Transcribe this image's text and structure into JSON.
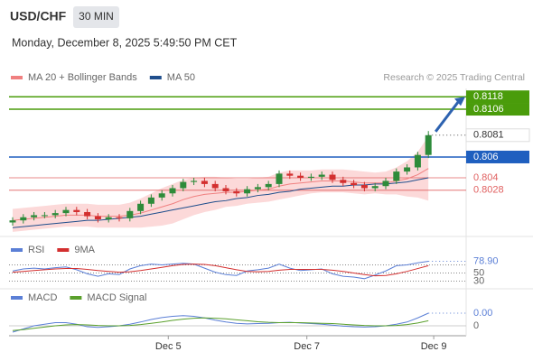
{
  "header": {
    "title": "USD/CHF",
    "interval": "30 MIN",
    "timestamp": "Monday, December 8, 2025 5:49:50 PM CET"
  },
  "chart_data": [
    {
      "type": "candlestick",
      "credit": "Research © 2025 Trading Central",
      "ylim": [
        0.7987,
        0.8126
      ],
      "up_color": "#2e8b3a",
      "down_color": "#d32f2f",
      "open": [
        0.7997,
        0.7999,
        0.8002,
        0.8004,
        0.8004,
        0.8006,
        0.8009,
        0.8007,
        0.8003,
        0.8,
        0.8002,
        0.8001,
        0.8008,
        0.8015,
        0.8021,
        0.8025,
        0.803,
        0.8036,
        0.8037,
        0.8034,
        0.803,
        0.8027,
        0.8025,
        0.8029,
        0.8031,
        0.8034,
        0.8044,
        0.8042,
        0.804,
        0.8041,
        0.8043,
        0.8038,
        0.8035,
        0.8033,
        0.803,
        0.8032,
        0.8037,
        0.8046,
        0.805,
        0.8062
      ],
      "high": [
        0.8002,
        0.8005,
        0.8007,
        0.8007,
        0.8009,
        0.8012,
        0.8012,
        0.801,
        0.8006,
        0.8005,
        0.8005,
        0.8011,
        0.8018,
        0.8024,
        0.8028,
        0.8033,
        0.8039,
        0.804,
        0.804,
        0.8037,
        0.8033,
        0.803,
        0.8032,
        0.8034,
        0.8037,
        0.8047,
        0.8047,
        0.8045,
        0.8044,
        0.8046,
        0.8046,
        0.8041,
        0.8038,
        0.8036,
        0.8035,
        0.804,
        0.8049,
        0.8053,
        0.8065,
        0.8085
      ],
      "low": [
        0.7994,
        0.7996,
        0.7999,
        0.8001,
        0.8001,
        0.8003,
        0.8004,
        0.8,
        0.7997,
        0.7997,
        0.7998,
        0.7998,
        0.8005,
        0.8012,
        0.8018,
        0.8022,
        0.8027,
        0.8033,
        0.8031,
        0.8027,
        0.8024,
        0.8022,
        0.8022,
        0.8026,
        0.8028,
        0.8031,
        0.8039,
        0.8037,
        0.8037,
        0.8038,
        0.8035,
        0.8032,
        0.803,
        0.8027,
        0.8027,
        0.8029,
        0.8034,
        0.8043,
        0.8047,
        0.8059
      ],
      "close": [
        0.7999,
        0.8002,
        0.8004,
        0.8004,
        0.8006,
        0.8009,
        0.8007,
        0.8003,
        0.8,
        0.8002,
        0.8001,
        0.8008,
        0.8015,
        0.8021,
        0.8025,
        0.803,
        0.8036,
        0.8037,
        0.8034,
        0.803,
        0.8027,
        0.8025,
        0.8029,
        0.8031,
        0.8034,
        0.8044,
        0.8042,
        0.804,
        0.8041,
        0.8043,
        0.8038,
        0.8035,
        0.8033,
        0.803,
        0.8032,
        0.8037,
        0.8046,
        0.805,
        0.8062,
        0.8081
      ],
      "overlays": [
        {
          "name": "MA 20 + Bollinger Bands",
          "color": "#f08080",
          "band_color": "#fcd9d9",
          "values": [
            0.7999,
            0.8,
            0.8001,
            0.8002,
            0.8003,
            0.8004,
            0.8004,
            0.8004,
            0.8003,
            0.8003,
            0.8003,
            0.8004,
            0.8006,
            0.8009,
            0.8012,
            0.8015,
            0.8019,
            0.8022,
            0.8024,
            0.8025,
            0.8026,
            0.8026,
            0.8027,
            0.8028,
            0.8029,
            0.8032,
            0.8034,
            0.8035,
            0.8036,
            0.8037,
            0.8037,
            0.8037,
            0.8036,
            0.8035,
            0.8035,
            0.8035,
            0.8037,
            0.8039,
            0.8043,
            0.8049
          ],
          "upper": [
            0.801,
            0.8011,
            0.8012,
            0.8013,
            0.8014,
            0.8015,
            0.8015,
            0.8015,
            0.8014,
            0.8014,
            0.8014,
            0.8016,
            0.802,
            0.8025,
            0.803,
            0.8034,
            0.8038,
            0.804,
            0.8041,
            0.8041,
            0.804,
            0.8039,
            0.8039,
            0.804,
            0.8041,
            0.8045,
            0.8047,
            0.8047,
            0.8047,
            0.8048,
            0.8048,
            0.8048,
            0.8047,
            0.8046,
            0.8045,
            0.8046,
            0.805,
            0.8056,
            0.8065,
            0.808
          ],
          "lower": [
            0.7988,
            0.7989,
            0.799,
            0.7991,
            0.7992,
            0.7993,
            0.7993,
            0.7993,
            0.7992,
            0.7992,
            0.7992,
            0.7992,
            0.7992,
            0.7993,
            0.7994,
            0.7996,
            0.8,
            0.8004,
            0.8007,
            0.8009,
            0.8012,
            0.8013,
            0.8015,
            0.8016,
            0.8017,
            0.8019,
            0.8021,
            0.8023,
            0.8025,
            0.8026,
            0.8026,
            0.8026,
            0.8025,
            0.8024,
            0.8025,
            0.8024,
            0.8024,
            0.8022,
            0.8021,
            0.8018
          ]
        },
        {
          "name": "MA 50",
          "color": "#1f4e8c",
          "values": [
            0.7992,
            0.7993,
            0.7994,
            0.7995,
            0.7996,
            0.7997,
            0.7998,
            0.7999,
            0.7999,
            0.8,
            0.8001,
            0.8002,
            0.8003,
            0.8005,
            0.8007,
            0.8009,
            0.8011,
            0.8013,
            0.8015,
            0.8017,
            0.8018,
            0.802,
            0.8021,
            0.8023,
            0.8024,
            0.8026,
            0.8027,
            0.8029,
            0.803,
            0.8031,
            0.8032,
            0.8032,
            0.8033,
            0.8033,
            0.8034,
            0.8034,
            0.8035,
            0.8036,
            0.8038,
            0.804
          ]
        }
      ],
      "levels": [
        {
          "value": 0.8118,
          "color": "#4a9c0b",
          "style": "box"
        },
        {
          "value": 0.8106,
          "color": "#4a9c0b",
          "style": "box"
        },
        {
          "value": 0.806,
          "color": "#1f5fbf",
          "style": "box"
        },
        {
          "value": 0.804,
          "color": "#e06060",
          "style": "text"
        },
        {
          "value": 0.8028,
          "color": "#e06060",
          "style": "text"
        }
      ]
    },
    {
      "type": "line",
      "ylim": [
        20,
        100
      ],
      "yticks": [
        30,
        50
      ],
      "overbought": 70,
      "last_label": "78.90",
      "series": [
        {
          "name": "RSI",
          "color": "#5b7fd6",
          "values": [
            55,
            60,
            62,
            60,
            63,
            65,
            58,
            48,
            42,
            48,
            46,
            60,
            68,
            72,
            70,
            72,
            74,
            72,
            62,
            52,
            46,
            44,
            55,
            58,
            62,
            72,
            62,
            56,
            58,
            60,
            48,
            42,
            40,
            36,
            45,
            55,
            68,
            70,
            75,
            78.9
          ]
        },
        {
          "name": "9MA",
          "color": "#d32f2f",
          "values": [
            52,
            54,
            56,
            58,
            60,
            61,
            61,
            59,
            56,
            54,
            52,
            53,
            56,
            60,
            64,
            68,
            71,
            72,
            71,
            68,
            63,
            58,
            54,
            53,
            54,
            57,
            59,
            59,
            59,
            59,
            57,
            54,
            50,
            46,
            43,
            44,
            48,
            54,
            61,
            68
          ]
        }
      ]
    },
    {
      "type": "line",
      "ylim": [
        -0.0003,
        0.0008
      ],
      "yticks": [
        0
      ],
      "last_label": "0.00",
      "xticks": [
        {
          "value": 14.6,
          "label": "Dec 5"
        },
        {
          "value": 27.6,
          "label": "Dec 7"
        },
        {
          "value": 39.5,
          "label": "Dec 9"
        }
      ],
      "series": [
        {
          "name": "MACD",
          "color": "#5b7fd6",
          "values": [
            -0.0002,
            -0.0001,
            0,
            5e-05,
            0.0001,
            0.0001,
            5e-05,
            -3e-05,
            -5e-05,
            -3e-05,
            0,
            5e-05,
            0.00012,
            0.0002,
            0.00026,
            0.0003,
            0.00032,
            0.0003,
            0.00025,
            0.00018,
            0.00012,
            8e-05,
            6e-05,
            7e-05,
            8e-05,
            0.0001,
            0.00011,
            9e-05,
            7e-05,
            5e-05,
            2e-05,
            -1e-05,
            -3e-05,
            -4e-05,
            -3e-05,
            0,
            5e-05,
            0.00012,
            0.00025,
            0.0004
          ]
        },
        {
          "name": "MACD Signal",
          "color": "#5aa02c",
          "values": [
            -0.00015,
            -0.00012,
            -8e-05,
            -4e-05,
            0,
            3e-05,
            4e-05,
            3e-05,
            1e-05,
            0,
            0,
            1e-05,
            4e-05,
            8e-05,
            0.00012,
            0.00017,
            0.00021,
            0.00024,
            0.00025,
            0.00024,
            0.00022,
            0.00019,
            0.00016,
            0.00013,
            0.00011,
            0.0001,
            0.0001,
            0.0001,
            9e-05,
            8e-05,
            7e-05,
            5e-05,
            3e-05,
            1e-05,
            0,
            0,
            1e-05,
            4e-05,
            9e-05,
            0.00016
          ]
        }
      ]
    }
  ]
}
